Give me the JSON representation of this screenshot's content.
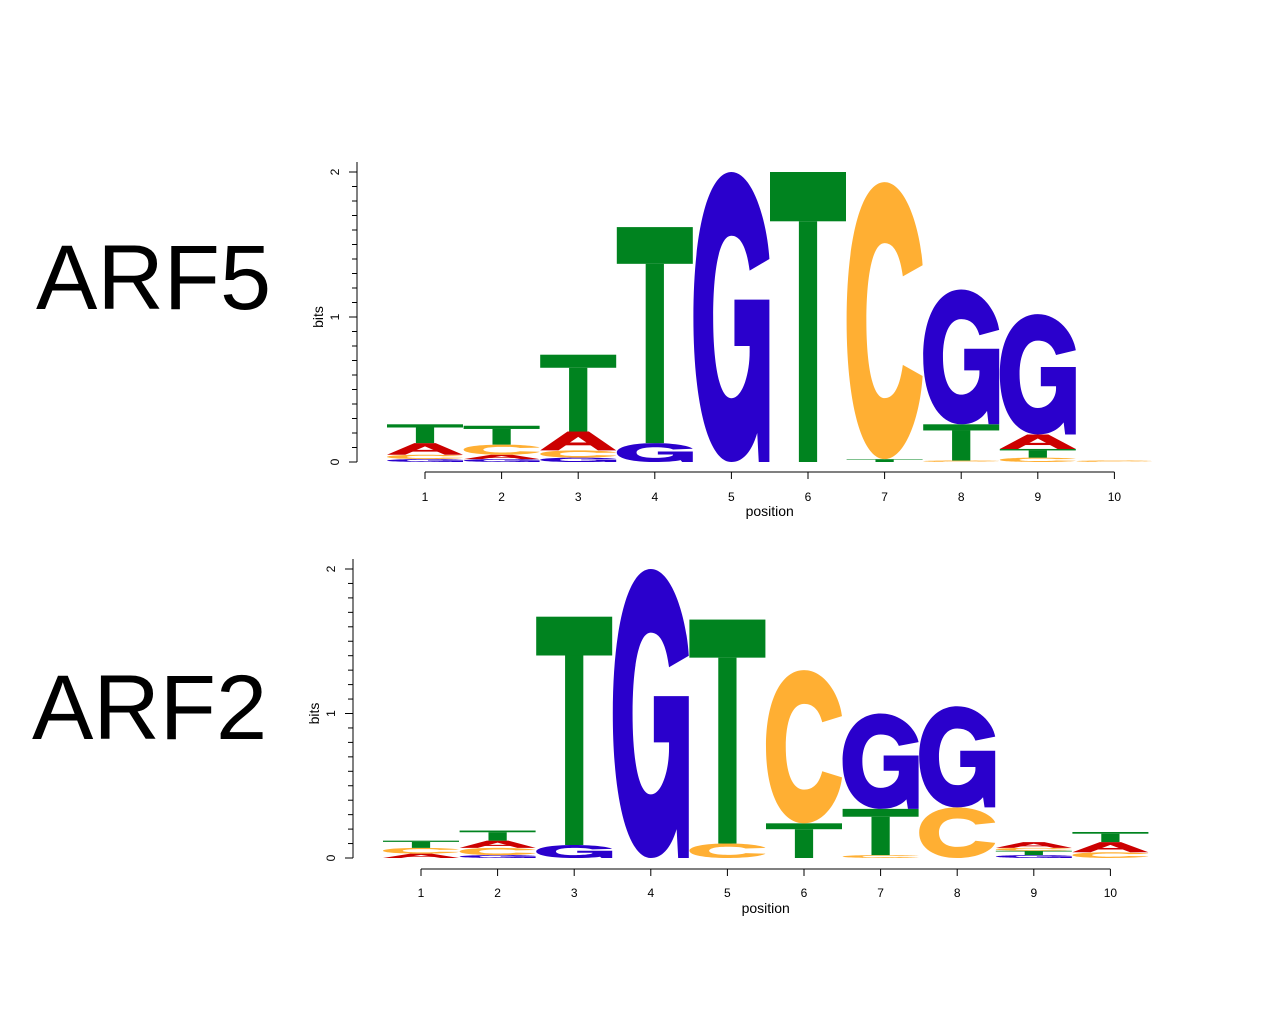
{
  "chart_data": [
    {
      "type": "sequence-logo",
      "panel_label": "ARF5",
      "xlabel": "position",
      "ylabel": "bits",
      "ylim": [
        0,
        2
      ],
      "yticks": [
        0,
        1,
        2
      ],
      "positions": [
        1,
        2,
        3,
        4,
        5,
        6,
        7,
        8,
        9,
        10
      ],
      "columns": [
        [
          {
            "base": "G",
            "bits": 0.02
          },
          {
            "base": "C",
            "bits": 0.03
          },
          {
            "base": "A",
            "bits": 0.08
          },
          {
            "base": "T",
            "bits": 0.13
          }
        ],
        [
          {
            "base": "G",
            "bits": 0.02
          },
          {
            "base": "A",
            "bits": 0.03
          },
          {
            "base": "C",
            "bits": 0.07
          },
          {
            "base": "T",
            "bits": 0.13
          }
        ],
        [
          {
            "base": "G",
            "bits": 0.03
          },
          {
            "base": "C",
            "bits": 0.05
          },
          {
            "base": "A",
            "bits": 0.13
          },
          {
            "base": "T",
            "bits": 0.53
          }
        ],
        [
          {
            "base": "G",
            "bits": 0.13
          },
          {
            "base": "T",
            "bits": 1.49
          }
        ],
        [
          {
            "base": "G",
            "bits": 2.0
          }
        ],
        [
          {
            "base": "T",
            "bits": 2.0
          }
        ],
        [
          {
            "base": "T",
            "bits": 0.02
          },
          {
            "base": "C",
            "bits": 1.91
          }
        ],
        [
          {
            "base": "C",
            "bits": 0.01
          },
          {
            "base": "T",
            "bits": 0.25
          },
          {
            "base": "G",
            "bits": 0.93
          }
        ],
        [
          {
            "base": "C",
            "bits": 0.03
          },
          {
            "base": "T",
            "bits": 0.06
          },
          {
            "base": "A",
            "bits": 0.1
          },
          {
            "base": "G",
            "bits": 0.83
          }
        ],
        [
          {
            "base": "C",
            "bits": 0.01
          }
        ]
      ]
    },
    {
      "type": "sequence-logo",
      "panel_label": "ARF2",
      "xlabel": "position",
      "ylabel": "bits",
      "ylim": [
        0,
        2
      ],
      "yticks": [
        0,
        1,
        2
      ],
      "positions": [
        1,
        2,
        3,
        4,
        5,
        6,
        7,
        8,
        9,
        10
      ],
      "columns": [
        [
          {
            "base": "A",
            "bits": 0.03
          },
          {
            "base": "C",
            "bits": 0.04
          },
          {
            "base": "T",
            "bits": 0.05
          }
        ],
        [
          {
            "base": "G",
            "bits": 0.02
          },
          {
            "base": "C",
            "bits": 0.05
          },
          {
            "base": "A",
            "bits": 0.05
          },
          {
            "base": "T",
            "bits": 0.07
          }
        ],
        [
          {
            "base": "G",
            "bits": 0.09
          },
          {
            "base": "T",
            "bits": 1.58
          }
        ],
        [
          {
            "base": "G",
            "bits": 2.0
          }
        ],
        [
          {
            "base": "C",
            "bits": 0.1
          },
          {
            "base": "T",
            "bits": 1.55
          }
        ],
        [
          {
            "base": "T",
            "bits": 0.24
          },
          {
            "base": "C",
            "bits": 1.06
          }
        ],
        [
          {
            "base": "C",
            "bits": 0.02
          },
          {
            "base": "T",
            "bits": 0.32
          },
          {
            "base": "G",
            "bits": 0.66
          }
        ],
        [
          {
            "base": "C",
            "bits": 0.35
          },
          {
            "base": "G",
            "bits": 0.7
          }
        ],
        [
          {
            "base": "G",
            "bits": 0.02
          },
          {
            "base": "T",
            "bits": 0.03
          },
          {
            "base": "C",
            "bits": 0.02
          },
          {
            "base": "A",
            "bits": 0.04
          }
        ],
        [
          {
            "base": "C",
            "bits": 0.04
          },
          {
            "base": "A",
            "bits": 0.07
          },
          {
            "base": "T",
            "bits": 0.07
          }
        ]
      ]
    }
  ],
  "colors": {
    "A": "#cc0000",
    "C": "#ffaf33",
    "G": "#2a00cc",
    "T": "#00831f"
  }
}
